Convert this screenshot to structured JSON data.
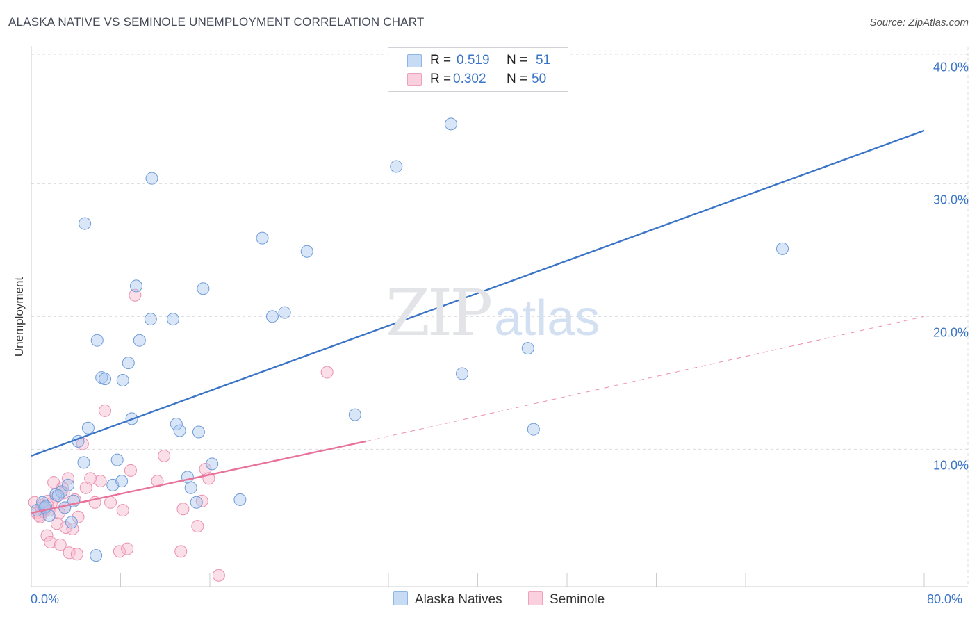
{
  "title": "ALASKA NATIVE VS SEMINOLE UNEMPLOYMENT CORRELATION CHART",
  "source": "Source: ZipAtlas.com",
  "watermark": {
    "zip": "ZIP",
    "atlas": "atlas"
  },
  "stats": [
    {
      "r_label": "R =",
      "r_value": "0.519",
      "n_label": "N =",
      "n_value": "51",
      "color": "#a9c8f0"
    },
    {
      "r_label": "R =",
      "r_value": "0.302",
      "n_label": "N =",
      "n_value": "50",
      "color": "#f6b7cb"
    }
  ],
  "legend": [
    {
      "label": "Alaska Natives",
      "color": "#a9c8f0"
    },
    {
      "label": "Seminole",
      "color": "#f6b7cb"
    }
  ],
  "chart_data": {
    "type": "scatter",
    "title": "ALASKA NATIVE VS SEMINOLE UNEMPLOYMENT CORRELATION CHART",
    "xlabel": "",
    "ylabel": "Unemployment",
    "xlim": [
      0,
      80
    ],
    "ylim": [
      0,
      42
    ],
    "x_tick_labels": [
      "0.0%",
      "80.0%"
    ],
    "y_ticks": [
      10,
      20,
      30,
      40
    ],
    "y_tick_labels": [
      "10.0%",
      "20.0%",
      "30.0%",
      "40.0%"
    ],
    "grid": true,
    "series": [
      {
        "name": "Alaska Natives",
        "color": "#3a74c7",
        "fill": "#a9c8f0",
        "trendline": {
          "x": [
            0,
            80
          ],
          "y": [
            9.5,
            34
          ],
          "style": "solid"
        },
        "points": [
          [
            0.5,
            5.4
          ],
          [
            1.0,
            6.0
          ],
          [
            1.2,
            5.6
          ],
          [
            1.6,
            5.0
          ],
          [
            2.2,
            6.6
          ],
          [
            2.7,
            6.8
          ],
          [
            3.0,
            5.6
          ],
          [
            3.3,
            7.3
          ],
          [
            3.6,
            4.5
          ],
          [
            3.8,
            6.1
          ],
          [
            4.2,
            10.6
          ],
          [
            4.7,
            9.0
          ],
          [
            5.1,
            11.6
          ],
          [
            4.8,
            27.0
          ],
          [
            5.8,
            2.0
          ],
          [
            5.9,
            18.2
          ],
          [
            6.3,
            15.4
          ],
          [
            6.6,
            15.3
          ],
          [
            7.3,
            7.3
          ],
          [
            7.7,
            9.2
          ],
          [
            8.1,
            7.6
          ],
          [
            8.2,
            15.2
          ],
          [
            8.7,
            16.5
          ],
          [
            9.0,
            12.3
          ],
          [
            9.4,
            22.3
          ],
          [
            9.7,
            18.2
          ],
          [
            10.7,
            19.8
          ],
          [
            10.8,
            30.4
          ],
          [
            12.7,
            19.8
          ],
          [
            13.0,
            11.9
          ],
          [
            13.3,
            11.4
          ],
          [
            14.0,
            7.9
          ],
          [
            14.3,
            7.1
          ],
          [
            14.8,
            6.0
          ],
          [
            15.0,
            11.3
          ],
          [
            15.4,
            22.1
          ],
          [
            16.2,
            8.9
          ],
          [
            18.7,
            6.2
          ],
          [
            20.7,
            25.9
          ],
          [
            21.6,
            20.0
          ],
          [
            22.7,
            20.3
          ],
          [
            24.7,
            24.9
          ],
          [
            29.0,
            12.6
          ],
          [
            32.7,
            31.3
          ],
          [
            37.6,
            34.5
          ],
          [
            38.6,
            15.7
          ],
          [
            44.5,
            17.6
          ],
          [
            45.0,
            11.5
          ],
          [
            67.3,
            25.1
          ],
          [
            1.3,
            5.7
          ],
          [
            2.4,
            6.5
          ]
        ]
      },
      {
        "name": "Seminole",
        "color": "#e8729b",
        "fill": "#f6b7cb",
        "trendline": {
          "x": [
            0,
            30
          ],
          "y": [
            5.2,
            10.6
          ],
          "style": "solid",
          "extension": {
            "x": [
              30,
              80
            ],
            "y": [
              10.6,
              20.0
            ],
            "style": "dashed"
          }
        },
        "points": [
          [
            0.3,
            6.0
          ],
          [
            0.5,
            5.2
          ],
          [
            0.7,
            5.0
          ],
          [
            0.9,
            5.6
          ],
          [
            1.1,
            5.3
          ],
          [
            1.3,
            5.5
          ],
          [
            1.6,
            5.4
          ],
          [
            1.8,
            5.9
          ],
          [
            1.4,
            3.5
          ],
          [
            1.7,
            3.0
          ],
          [
            2.0,
            7.5
          ],
          [
            2.2,
            6.4
          ],
          [
            2.3,
            4.4
          ],
          [
            2.6,
            2.8
          ],
          [
            2.8,
            7.1
          ],
          [
            3.0,
            5.6
          ],
          [
            3.1,
            4.1
          ],
          [
            3.3,
            7.8
          ],
          [
            3.4,
            2.2
          ],
          [
            3.7,
            4.0
          ],
          [
            3.9,
            6.2
          ],
          [
            4.1,
            2.1
          ],
          [
            4.2,
            4.9
          ],
          [
            4.6,
            10.4
          ],
          [
            4.9,
            7.1
          ],
          [
            5.3,
            7.8
          ],
          [
            5.7,
            6.0
          ],
          [
            6.2,
            7.6
          ],
          [
            6.6,
            12.9
          ],
          [
            7.1,
            6.0
          ],
          [
            7.9,
            2.3
          ],
          [
            8.2,
            5.4
          ],
          [
            8.6,
            2.5
          ],
          [
            8.9,
            8.4
          ],
          [
            9.3,
            21.6
          ],
          [
            11.3,
            7.6
          ],
          [
            11.9,
            9.5
          ],
          [
            13.4,
            2.3
          ],
          [
            13.6,
            5.5
          ],
          [
            14.9,
            4.2
          ],
          [
            15.3,
            6.1
          ],
          [
            15.6,
            8.5
          ],
          [
            15.9,
            7.8
          ],
          [
            16.8,
            0.5
          ],
          [
            26.5,
            15.8
          ],
          [
            1.0,
            5.8
          ],
          [
            1.5,
            6.1
          ],
          [
            2.5,
            5.2
          ],
          [
            2.9,
            6.7
          ],
          [
            0.8,
            4.9
          ]
        ]
      }
    ]
  }
}
